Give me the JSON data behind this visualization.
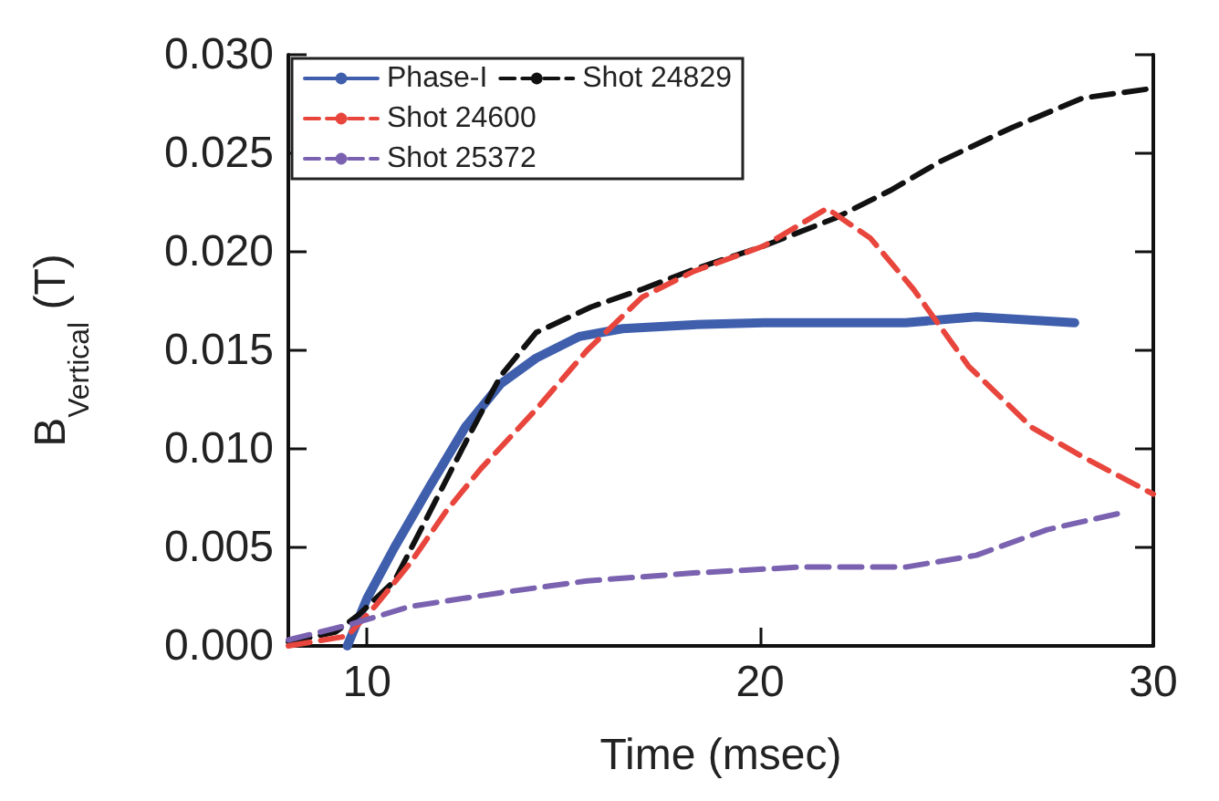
{
  "chart_data": {
    "type": "line",
    "xlabel": "Time (msec)",
    "ylabel": "B$_{Vertical}$ (T)",
    "xlim": [
      8,
      30
    ],
    "xticks": [
      10,
      20,
      30
    ],
    "ylim": [
      0,
      0.03
    ],
    "yticks": [
      {
        "value": 0,
        "label": "0.000"
      },
      {
        "value": 0.005,
        "label": "0.005"
      },
      {
        "value": 0.01,
        "label": "0.010"
      },
      {
        "value": 0.015,
        "label": "0.015"
      },
      {
        "value": 0.02,
        "label": "0.020"
      },
      {
        "value": 0.025,
        "label": "0.025"
      },
      {
        "value": 0.03,
        "label": "0.030"
      }
    ],
    "grid": false,
    "legend": "top left",
    "marker": "none",
    "series": [
      {
        "name": "Phase-I",
        "color": "#3f5fad",
        "line_style": "solid",
        "x": [
          9.5,
          10,
          10.7,
          11.6,
          12.5,
          13.4,
          14.3,
          15.4,
          16.5,
          18.3,
          20.1,
          23.7,
          25.5,
          28
        ],
        "values": [
          0,
          0.0024,
          0.005,
          0.0081,
          0.0111,
          0.0133,
          0.0146,
          0.0157,
          0.0161,
          0.0163,
          0.0164,
          0.0164,
          0.0167,
          0.0164
        ]
      },
      {
        "name": "Shot 24829",
        "color": "#111111",
        "line_style": "dashed",
        "x": [
          8,
          9.2,
          9.8,
          10.7,
          11.6,
          12.5,
          13.4,
          14.3,
          15.7,
          17,
          18.3,
          20.1,
          21.9,
          23.3,
          24.6,
          26.4,
          28.2,
          30
        ],
        "values": [
          0.0002,
          0.0007,
          0.0016,
          0.0033,
          0.0068,
          0.0103,
          0.0137,
          0.0159,
          0.0172,
          0.0181,
          0.0191,
          0.0203,
          0.0217,
          0.0231,
          0.0246,
          0.0263,
          0.0278,
          0.0283
        ]
      },
      {
        "name": "Shot 24600",
        "color": "#e8453c",
        "line_style": "dashed",
        "x": [
          8,
          9.5,
          10.2,
          11.1,
          12,
          12.9,
          14.3,
          15.6,
          17,
          18.3,
          20.1,
          21.7,
          22.8,
          23.9,
          25.3,
          26.9,
          28.2,
          30
        ],
        "values": [
          0,
          0.0005,
          0.002,
          0.0042,
          0.0068,
          0.009,
          0.012,
          0.015,
          0.0177,
          0.019,
          0.0203,
          0.0222,
          0.0207,
          0.0181,
          0.0142,
          0.0111,
          0.0096,
          0.0077
        ]
      },
      {
        "name": "Shot 25372",
        "color": "#7a62b0",
        "line_style": "dashed",
        "x": [
          8,
          9.6,
          11.1,
          13.4,
          15.6,
          18.3,
          21,
          23.7,
          25.5,
          27.3,
          29.3
        ],
        "values": [
          0.0003,
          0.0011,
          0.002,
          0.0027,
          0.0033,
          0.0037,
          0.004,
          0.004,
          0.0046,
          0.0059,
          0.0068
        ]
      }
    ]
  }
}
